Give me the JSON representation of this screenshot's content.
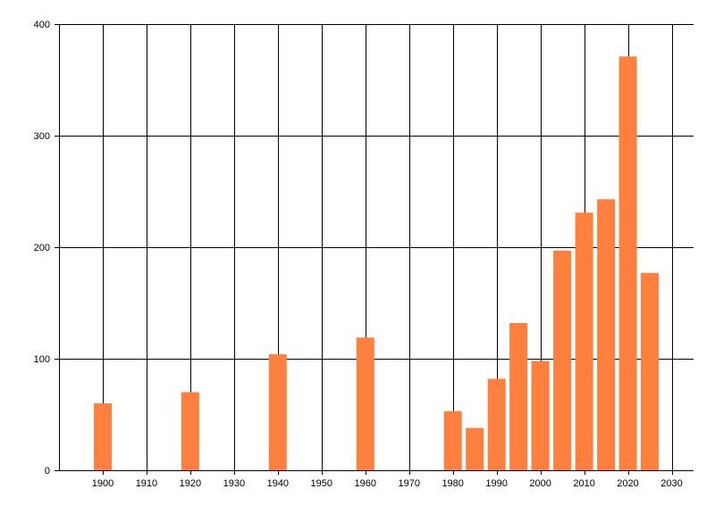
{
  "chart_data": {
    "type": "bar",
    "title": "",
    "xlabel": "",
    "ylabel": "",
    "x": [
      1900,
      1920,
      1940,
      1960,
      1980,
      1985,
      1990,
      1995,
      2000,
      2005,
      2010,
      2015,
      2020,
      2025
    ],
    "values": [
      60,
      70,
      104,
      119,
      53,
      38,
      82,
      132,
      98,
      197,
      231,
      243,
      371,
      177
    ],
    "xlim": [
      1890,
      2035
    ],
    "ylim": [
      0,
      400
    ],
    "x_ticks": [
      "1900",
      "1910",
      "1920",
      "1930",
      "1940",
      "1950",
      "1960",
      "1970",
      "1980",
      "1990",
      "2000",
      "2010",
      "2020",
      "2030"
    ],
    "y_ticks": [
      "0",
      "100",
      "200",
      "300",
      "400"
    ],
    "grid": true,
    "bar_color": "#FF7F3F"
  }
}
